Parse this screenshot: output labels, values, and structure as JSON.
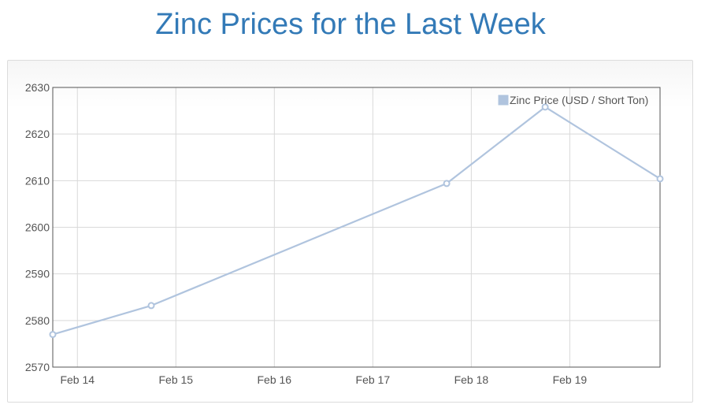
{
  "page": {
    "title": "Zinc Prices for the Last Week"
  },
  "colors": {
    "series": "#b0c4de",
    "title": "#337ab7",
    "grid": "#d9d9d9",
    "axis": "#555555"
  },
  "chart_data": {
    "type": "line",
    "title": "",
    "xlabel": "",
    "ylabel": "",
    "x_ticks": [
      "Feb 14",
      "Feb 15",
      "Feb 16",
      "Feb 17",
      "Feb 18",
      "Feb 19"
    ],
    "xlim": [
      "2022-02-13 18:00",
      "2022-02-19 22:00"
    ],
    "ylim": [
      2570,
      2630
    ],
    "y_ticks": [
      2570,
      2580,
      2590,
      2600,
      2610,
      2620,
      2630
    ],
    "grid": true,
    "legend": "top-right",
    "series": [
      {
        "name": "Zinc Price (USD / Short Ton)",
        "points": [
          {
            "x": "2022-02-13 18:00",
            "y": 2577
          },
          {
            "x": "2022-02-14 18:00",
            "y": 2583.2
          },
          {
            "x": "2022-02-17 18:00",
            "y": 2609.4
          },
          {
            "x": "2022-02-18 18:00",
            "y": 2625.8
          },
          {
            "x": "2022-02-19 22:00",
            "y": 2610.4
          }
        ]
      }
    ]
  }
}
